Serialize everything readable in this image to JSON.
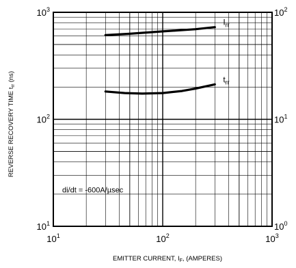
{
  "chart_data": {
    "type": "line",
    "title": "",
    "xlabel": "EMITTER CURRENT, I_F, (AMPERES)",
    "xlabel_main": "EMITTER CURRENT, I",
    "xlabel_sub": "F",
    "xlabel_tail": ", (AMPERES)",
    "ylabel": "REVERSE RECOVERY TIME t_rr (ns)",
    "ylabel_main": "REVERSE RECOVERY TIME t",
    "ylabel_sub": "rr",
    "ylabel_tail": " (ns)",
    "x_scale": "log",
    "y_scale": "log",
    "y2_scale": "log",
    "xlim": [
      10,
      1000
    ],
    "ylim": [
      10,
      1000
    ],
    "y2lim": [
      0.1,
      100
    ],
    "grid": true,
    "x_ticks": [
      {
        "value": 10,
        "base": "10",
        "exp": "1"
      },
      {
        "value": 100,
        "base": "10",
        "exp": "2"
      },
      {
        "value": 1000,
        "base": "10",
        "exp": "3"
      }
    ],
    "y_ticks": [
      {
        "value": 10,
        "base": "10",
        "exp": "1"
      },
      {
        "value": 100,
        "base": "10",
        "exp": "2"
      },
      {
        "value": 1000,
        "base": "10",
        "exp": "3"
      }
    ],
    "y2_ticks": [
      {
        "value": 10,
        "base": "10",
        "exp": "0"
      },
      {
        "value": 100,
        "base": "10",
        "exp": "1"
      },
      {
        "value": 1000,
        "base": "10",
        "exp": "2"
      }
    ],
    "series": [
      {
        "name": "I_rr",
        "label_main": "I",
        "label_sub": "rr",
        "axis": "right",
        "x": [
          30,
          50,
          100,
          200,
          300
        ],
        "y": [
          48,
          50,
          54,
          58,
          62
        ]
      },
      {
        "name": "t_rr",
        "label_main": "t",
        "label_sub": "rr",
        "axis": "left",
        "x": [
          30,
          45,
          65,
          100,
          150,
          200,
          300
        ],
        "y": [
          182,
          176,
          174,
          176,
          184,
          194,
          212
        ]
      }
    ],
    "annotation": "di/dt = -600A/µsec",
    "colors": {
      "line": "#000000",
      "grid": "#000000",
      "background": "#ffffff"
    }
  }
}
